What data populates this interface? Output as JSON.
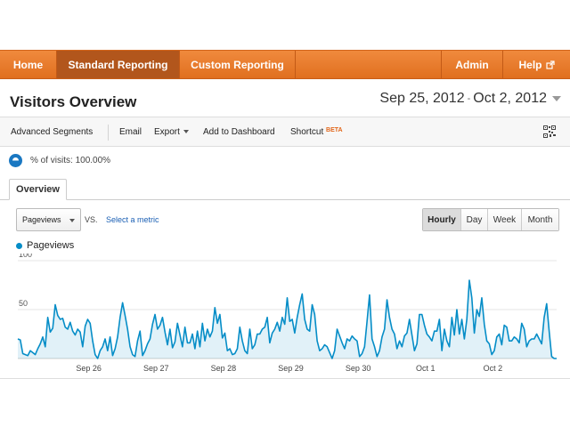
{
  "nav": {
    "home": "Home",
    "standard_reporting": "Standard Reporting",
    "custom_reporting": "Custom Reporting",
    "admin": "Admin",
    "help": "Help",
    "help_icon": "external-link-icon",
    "active_color": "#b2561c",
    "bar_color": "#e9792c"
  },
  "header": {
    "title": "Visitors Overview",
    "date_start": "Sep 25, 2012",
    "date_sep": "-",
    "date_end": "Oct 2, 2012"
  },
  "toolbar": {
    "advanced_segments": "Advanced Segments",
    "email": "Email",
    "export": "Export",
    "add_to_dashboard": "Add to Dashboard",
    "shortcut": "Shortcut",
    "shortcut_badge": "BETA"
  },
  "segment": {
    "label": "% of visits: 100.00%"
  },
  "tabs": {
    "overview": "Overview"
  },
  "controls": {
    "metric": "Pageviews",
    "vs": "VS.",
    "select_metric": "Select a metric",
    "granularity": [
      "Hourly",
      "Day",
      "Week",
      "Month"
    ],
    "active_granularity": "Hourly"
  },
  "chart_data": {
    "type": "area",
    "series": [
      {
        "name": "Pageviews",
        "color": "#058dc7",
        "values": [
          20,
          19,
          5,
          4,
          3,
          8,
          6,
          4,
          10,
          15,
          22,
          12,
          42,
          27,
          31,
          55,
          44,
          40,
          41,
          32,
          30,
          37,
          28,
          24,
          30,
          27,
          12,
          33,
          40,
          36,
          18,
          4,
          0,
          8,
          12,
          20,
          8,
          22,
          3,
          10,
          22,
          42,
          57,
          44,
          30,
          12,
          4,
          2,
          18,
          28,
          3,
          8,
          15,
          20,
          35,
          45,
          30,
          34,
          42,
          27,
          14,
          30,
          11,
          17,
          36,
          24,
          12,
          32,
          16,
          16,
          25,
          10,
          28,
          12,
          36,
          18,
          30,
          22,
          28,
          52,
          36,
          45,
          21,
          26,
          8,
          10,
          4,
          5,
          10,
          32,
          18,
          8,
          5,
          30,
          10,
          14,
          25,
          25,
          30,
          32,
          42,
          16,
          26,
          30,
          37,
          28,
          42,
          35,
          62,
          38,
          40,
          26,
          42,
          55,
          66,
          40,
          30,
          28,
          55,
          45,
          18,
          8,
          10,
          14,
          12,
          6,
          0,
          8,
          30,
          23,
          16,
          10,
          20,
          18,
          23,
          20,
          18,
          2,
          5,
          12,
          38,
          65,
          20,
          12,
          2,
          8,
          22,
          30,
          60,
          42,
          30,
          25,
          10,
          18,
          12,
          23,
          26,
          40,
          24,
          8,
          15,
          45,
          45,
          34,
          25,
          22,
          18,
          28,
          28,
          40,
          8,
          30,
          18,
          12,
          42,
          24,
          50,
          25,
          40,
          20,
          40,
          80,
          62,
          26,
          50,
          43,
          62,
          35,
          18,
          15,
          4,
          8,
          22,
          25,
          14,
          34,
          32,
          18,
          18,
          22,
          20,
          16,
          36,
          30,
          12,
          18,
          20,
          20,
          25,
          20,
          15,
          42,
          56,
          28,
          2,
          0,
          0
        ]
      }
    ],
    "x_tick_labels": [
      "Sep 26",
      "Sep 27",
      "Sep 28",
      "Sep 29",
      "Sep 30",
      "Oct 1",
      "Oct 2"
    ],
    "y_tick_labels": [
      "100",
      "50"
    ],
    "ylim": [
      0,
      100
    ],
    "grid": true,
    "legend": "top-left"
  }
}
